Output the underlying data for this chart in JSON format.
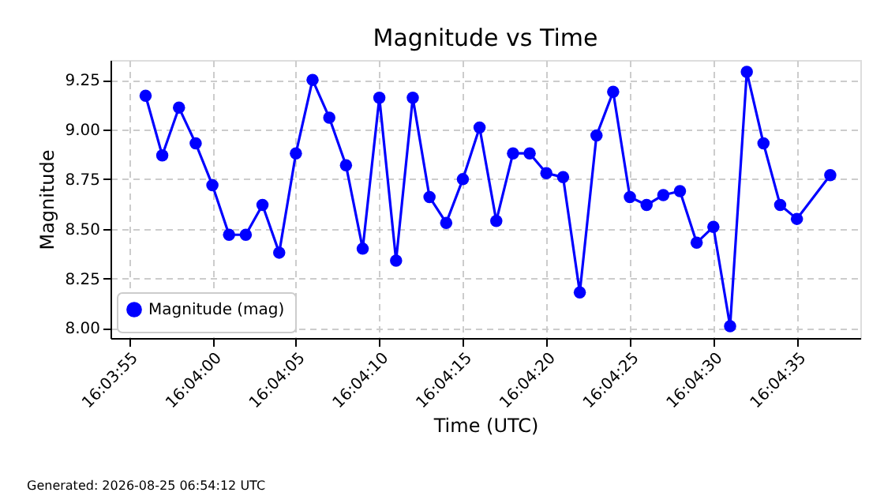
{
  "chart_data": {
    "type": "line",
    "title": "Magnitude vs Time",
    "xlabel": "Time (UTC)",
    "ylabel": "Magnitude",
    "annotations": [
      "Generated: 2026-08-25 06:54:12 UTC"
    ],
    "x": [
      16.065556,
      16.065833,
      16.066111,
      16.066389,
      16.066667,
      16.066944,
      16.067222,
      16.0675,
      16.067778,
      16.068056,
      16.068333,
      16.068611,
      16.068889,
      16.069167,
      16.069444,
      16.069722,
      16.07,
      16.070278,
      16.070556,
      16.070833,
      16.071111,
      16.071389,
      16.071667,
      16.071944,
      16.072222,
      16.0725,
      16.072778,
      16.073056,
      16.073333,
      16.073611,
      16.073889,
      16.074167,
      16.074444,
      16.074722,
      16.075,
      16.075278,
      16.075556,
      16.075833,
      16.076111,
      16.076389,
      16.076944
    ],
    "series": [
      {
        "name": "Magnitude (mag)",
        "color": "#0000ff",
        "values": [
          9.17,
          8.87,
          9.11,
          8.93,
          8.72,
          8.47,
          8.47,
          8.62,
          8.38,
          8.88,
          9.25,
          9.06,
          8.82,
          8.4,
          9.16,
          8.34,
          9.16,
          8.66,
          8.53,
          8.75,
          9.01,
          8.54,
          8.88,
          8.88,
          8.78,
          8.76,
          8.18,
          8.97,
          9.19,
          8.66,
          8.62,
          8.67,
          8.69,
          8.43,
          8.51,
          8.01,
          9.29,
          8.93,
          8.62,
          8.55,
          8.77
        ]
      }
    ],
    "xlim": [
      16.064972,
      16.077444
    ],
    "xticks": [
      {
        "value": 16.065278,
        "label": "16:03:55"
      },
      {
        "value": 16.066667,
        "label": "16:04:00"
      },
      {
        "value": 16.068056,
        "label": "16:04:05"
      },
      {
        "value": 16.069444,
        "label": "16:04:10"
      },
      {
        "value": 16.070833,
        "label": "16:04:15"
      },
      {
        "value": 16.072222,
        "label": "16:04:20"
      },
      {
        "value": 16.073611,
        "label": "16:04:25"
      },
      {
        "value": 16.075,
        "label": "16:04:30"
      },
      {
        "value": 16.076389,
        "label": "16:04:35"
      }
    ],
    "ylim": [
      7.95,
      9.35
    ],
    "yticks": [
      {
        "value": 8.0,
        "label": "8.00"
      },
      {
        "value": 8.25,
        "label": "8.25"
      },
      {
        "value": 8.5,
        "label": "8.50"
      },
      {
        "value": 8.75,
        "label": "8.75"
      },
      {
        "value": 9.0,
        "label": "9.00"
      },
      {
        "value": 9.25,
        "label": "9.25"
      }
    ],
    "grid": true,
    "legend": "bottom left",
    "marker": "circle",
    "line_style": "solid"
  }
}
